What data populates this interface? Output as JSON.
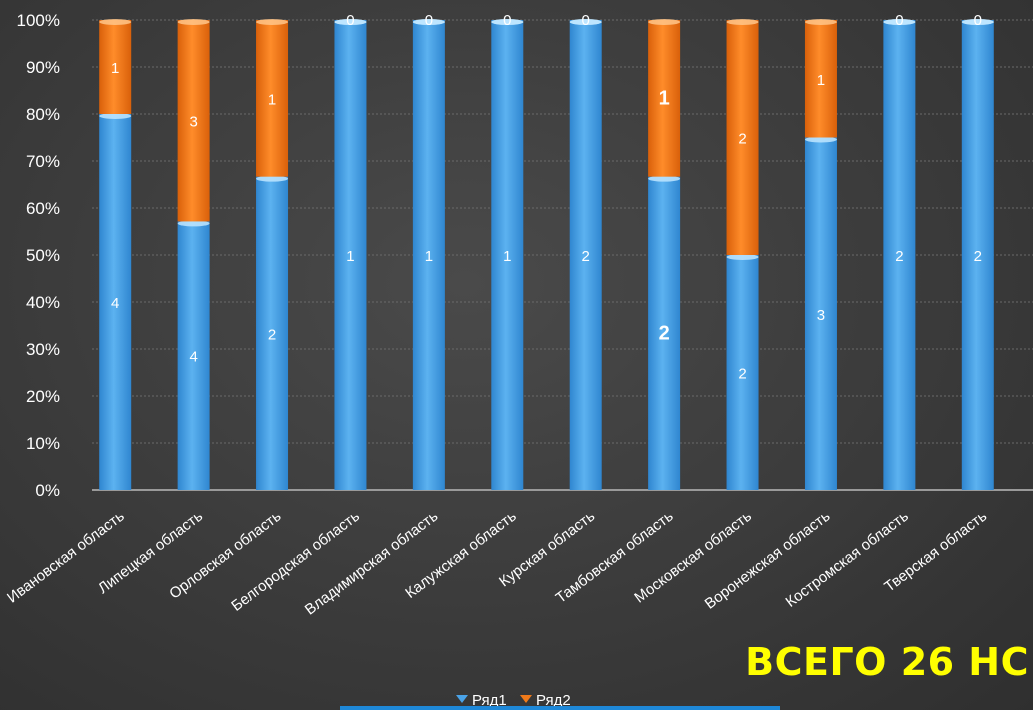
{
  "chart_data": {
    "type": "bar",
    "stacked": "percent",
    "categories": [
      "Ивановская область",
      "Липецкая область",
      "Орловская область",
      "Белгородская область",
      "Владимирская область",
      "Калужская область",
      "Курская область",
      "Тамбовская область",
      "Московская область",
      "Воронежская область",
      "Костромская область",
      "Тверская область"
    ],
    "series": [
      {
        "name": "Ряд1",
        "values": [
          4,
          4,
          2,
          1,
          1,
          1,
          2,
          2,
          2,
          3,
          2,
          2
        ],
        "color": "#4aa3e8"
      },
      {
        "name": "Ряд2",
        "values": [
          1,
          3,
          1,
          0,
          0,
          0,
          0,
          1,
          2,
          1,
          0,
          0
        ],
        "color": "#f07a1a"
      }
    ],
    "bold_category": "Тамбовская область",
    "y_ticks": [
      "0%",
      "10%",
      "20%",
      "30%",
      "40%",
      "50%",
      "60%",
      "70%",
      "80%",
      "90%",
      "100%"
    ],
    "ylim": [
      0,
      100
    ],
    "grid": true,
    "legend_position": "bottom"
  },
  "annotation": {
    "total_text": "ВСЕГО 26 НС"
  }
}
